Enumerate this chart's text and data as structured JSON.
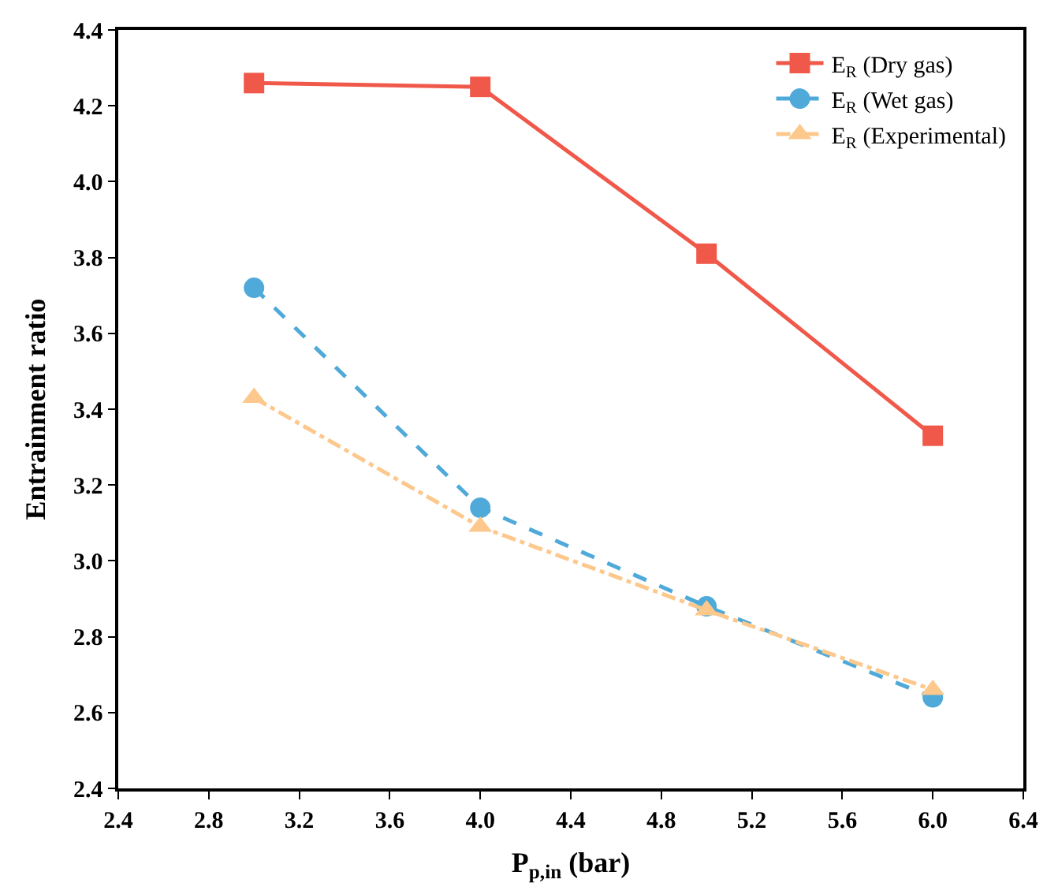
{
  "chart_data": {
    "type": "line",
    "xlabel": "P$_{p,in}$ (bar)",
    "ylabel": "Entrainment ratio",
    "x": [
      3.0,
      4.0,
      5.0,
      6.0
    ],
    "series": [
      {
        "name": "E$_{R}$ (Dry gas)",
        "color": "#f0584a",
        "values": [
          4.26,
          4.25,
          3.81,
          3.33
        ],
        "marker": "square",
        "line_style": "solid"
      },
      {
        "name": "E$_{R}$ (Wet gas)",
        "color": "#4fa9d9",
        "values": [
          3.72,
          3.14,
          2.88,
          2.64
        ],
        "marker": "circle",
        "line_style": "dashed"
      },
      {
        "name": "E$_{R}$ (Experimental)",
        "color": "#fcc88c",
        "values": [
          3.43,
          3.09,
          2.87,
          2.66
        ],
        "marker": "triangle",
        "line_style": "dashdot"
      }
    ],
    "xlim": [
      2.4,
      6.4
    ],
    "xticks": [
      2.4,
      2.8,
      3.2,
      3.6,
      {
        "value": 4,
        "label": "4.0"
      },
      4.4,
      4.8,
      5.2,
      5.6,
      {
        "value": 6,
        "label": "6.0"
      },
      6.4
    ],
    "ylim": [
      2.4,
      4.4
    ],
    "yticks": [
      2.4,
      2.6,
      2.8,
      {
        "value": 3,
        "label": "3.0"
      },
      3.2,
      3.4,
      3.6,
      3.8,
      {
        "value": 4,
        "label": "4.0"
      },
      4.2,
      4.4
    ],
    "grid": false,
    "legend": "top right"
  }
}
